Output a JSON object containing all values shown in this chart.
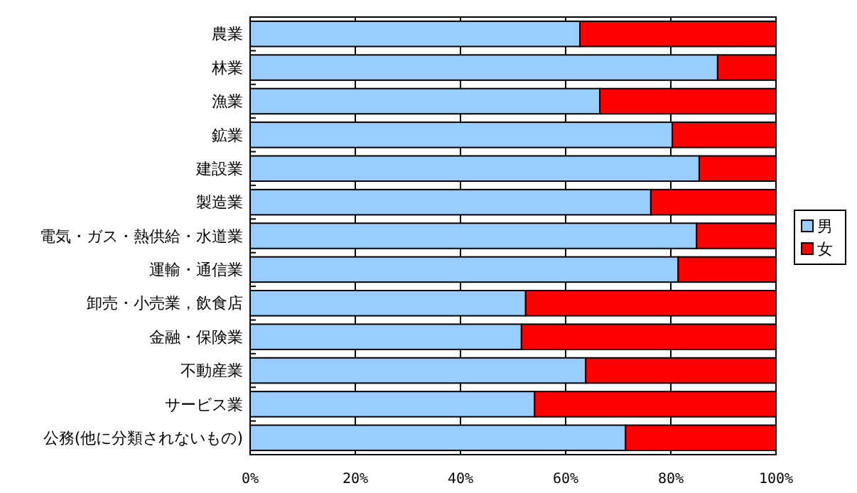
{
  "chart_data": {
    "type": "bar",
    "orientation": "horizontal",
    "stacked": true,
    "categories": [
      "農業",
      "林業",
      "漁業",
      "鉱業",
      "建設業",
      "製造業",
      "電気・ガス・熱供給・水道業",
      "運輸・通信業",
      "卸売・小売業，飲食店",
      "金融・保険業",
      "不動産業",
      "サービス業",
      "公務(他に分類されないもの)"
    ],
    "series": [
      {
        "name": "男",
        "color": "#99ccff",
        "values": [
          62.7,
          88.9,
          66.5,
          80.3,
          85.4,
          76.2,
          84.9,
          81.4,
          52.4,
          51.6,
          63.8,
          54.1,
          71.4
        ]
      },
      {
        "name": "女",
        "color": "#ff0000",
        "values": [
          37.3,
          11.1,
          33.5,
          19.7,
          14.6,
          23.8,
          15.1,
          18.6,
          47.6,
          48.4,
          36.2,
          45.9,
          28.6
        ]
      }
    ],
    "xlim": [
      0,
      100
    ],
    "xticks": [
      {
        "value": 0,
        "label": "0%"
      },
      {
        "value": 20,
        "label": "20%"
      },
      {
        "value": 40,
        "label": "40%"
      },
      {
        "value": 60,
        "label": "60%"
      },
      {
        "value": 80,
        "label": "80%"
      },
      {
        "value": 100,
        "label": "100%"
      }
    ],
    "grid": "x",
    "legend": "right"
  }
}
